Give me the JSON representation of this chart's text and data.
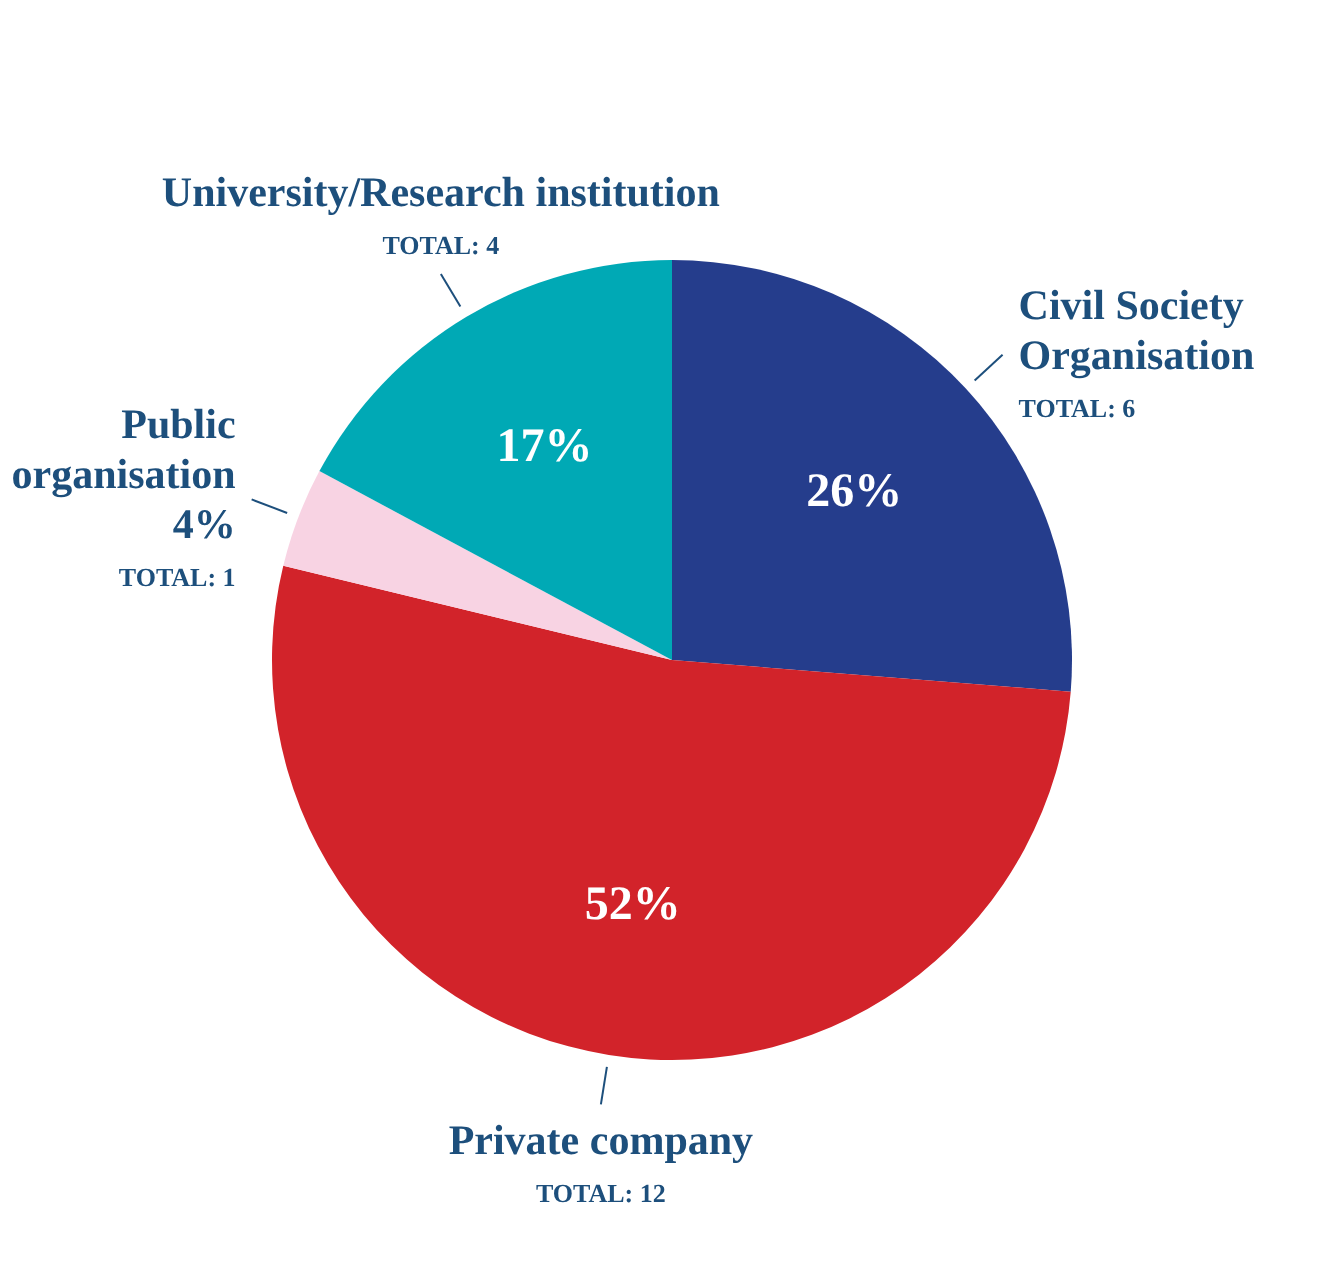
{
  "chart_data": {
    "type": "pie",
    "categories": [
      "Civil Society Organisation",
      "Private company",
      "Public organisation",
      "University/Research institution"
    ],
    "values": [
      26,
      52,
      4,
      17
    ],
    "value_labels": [
      "26%",
      "52%",
      "4%",
      "17%"
    ],
    "colors": [
      "#253d8c",
      "#d2232a",
      "#f8d3e3",
      "#00a9b5"
    ],
    "annotations": [
      "TOTAL: 6",
      "TOTAL: 12",
      "TOTAL: 1",
      "TOTAL: 4"
    ],
    "legend": false
  }
}
